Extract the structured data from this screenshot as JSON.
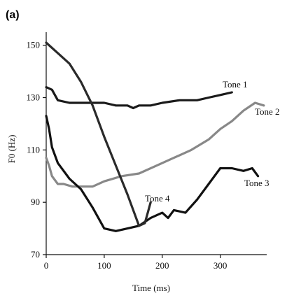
{
  "panel_label": "(a)",
  "chart_data": {
    "type": "line",
    "title": "",
    "xlabel": "Time (ms)",
    "ylabel": "F0 (Hz)",
    "xlim": [
      0,
      380
    ],
    "ylim": [
      70,
      155
    ],
    "xticks": [
      0,
      100,
      200,
      300
    ],
    "yticks": [
      70,
      90,
      110,
      130,
      150
    ],
    "grid": false,
    "legend": "none",
    "series": [
      {
        "name": "Tone 1",
        "color": "#1a1a1a",
        "x": [
          0,
          10,
          20,
          40,
          70,
          100,
          120,
          140,
          150,
          160,
          180,
          200,
          230,
          260,
          280,
          300,
          320
        ],
        "y": [
          134,
          133,
          129,
          128,
          128,
          128,
          127,
          127,
          126,
          127,
          127,
          128,
          129,
          129,
          130,
          131,
          132
        ]
      },
      {
        "name": "Tone 2",
        "color": "#888888",
        "x": [
          0,
          5,
          10,
          20,
          30,
          45,
          60,
          80,
          100,
          130,
          160,
          190,
          220,
          250,
          280,
          300,
          320,
          340,
          360,
          375
        ],
        "y": [
          107,
          104,
          100,
          97,
          97,
          96,
          96,
          96,
          98,
          100,
          101,
          104,
          107,
          110,
          114,
          118,
          121,
          125,
          128,
          127
        ]
      },
      {
        "name": "Tone 3",
        "color": "#111111",
        "x": [
          0,
          5,
          10,
          20,
          40,
          60,
          80,
          100,
          120,
          140,
          160,
          180,
          200,
          210,
          220,
          240,
          260,
          280,
          300,
          320,
          340,
          355,
          365
        ],
        "y": [
          123,
          118,
          111,
          105,
          99,
          95,
          88,
          80,
          79,
          80,
          81,
          84,
          86,
          84,
          87,
          86,
          91,
          97,
          103,
          103,
          102,
          103,
          100
        ]
      },
      {
        "name": "Tone 4",
        "color": "#2a2a2a",
        "x": [
          0,
          20,
          40,
          60,
          80,
          100,
          120,
          140,
          160,
          170,
          175,
          180
        ],
        "y": [
          151,
          147,
          143,
          136,
          127,
          115,
          104,
          93,
          81,
          82,
          86,
          90
        ]
      }
    ],
    "annotations": [
      {
        "text": "Tone 1",
        "series": "Tone 1"
      },
      {
        "text": "Tone 2",
        "series": "Tone 2"
      },
      {
        "text": "Tone 3",
        "series": "Tone 3"
      },
      {
        "text": "Tone 4",
        "series": "Tone 4"
      }
    ]
  }
}
